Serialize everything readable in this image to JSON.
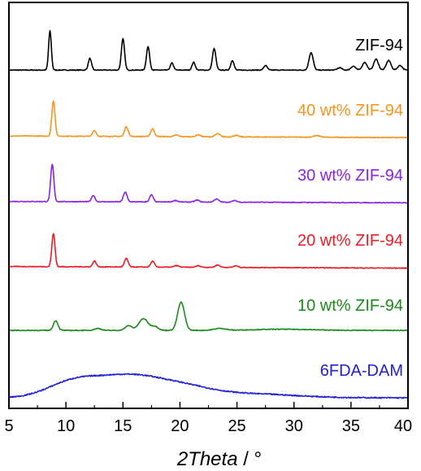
{
  "chart_data": {
    "type": "line",
    "title": "",
    "xlabel": "2Theta / °",
    "xlabel_main": "2Theta",
    "xlabel_unit": " / °",
    "ylabel": "",
    "xlim": [
      5,
      40
    ],
    "xticks": [
      5,
      10,
      15,
      20,
      25,
      30,
      35,
      40
    ],
    "xtick_labels": [
      "5",
      "10",
      "15",
      "20",
      "25",
      "30",
      "35",
      "40"
    ],
    "grid": false,
    "y_axis_shown": false,
    "legend": "inline labels at right of each trace",
    "series": [
      {
        "name": "ZIF-94",
        "color": "#000000",
        "offset": 5,
        "baseline": 0.08,
        "baseline_slope": 0,
        "peaks": [
          [
            8.6,
            1.0,
            0.12
          ],
          [
            12.1,
            0.3,
            0.14
          ],
          [
            15.0,
            0.8,
            0.14
          ],
          [
            17.2,
            0.6,
            0.14
          ],
          [
            19.3,
            0.18,
            0.14
          ],
          [
            21.2,
            0.2,
            0.14
          ],
          [
            23.0,
            0.55,
            0.15
          ],
          [
            24.6,
            0.25,
            0.14
          ],
          [
            27.5,
            0.12,
            0.15
          ],
          [
            31.5,
            0.45,
            0.18
          ],
          [
            34.0,
            0.06,
            0.2
          ],
          [
            35.2,
            0.1,
            0.2
          ],
          [
            36.2,
            0.2,
            0.2
          ],
          [
            37.2,
            0.28,
            0.2
          ],
          [
            38.3,
            0.25,
            0.2
          ],
          [
            39.3,
            0.12,
            0.2
          ]
        ],
        "noise": 0.01
      },
      {
        "name": "40 wt% ZIF-94",
        "color": "#f7941d",
        "offset": 4,
        "baseline": 0.06,
        "baseline_slope": -0.0012,
        "peaks": [
          [
            8.9,
            0.9,
            0.14
          ],
          [
            12.5,
            0.15,
            0.15
          ],
          [
            15.3,
            0.25,
            0.16
          ],
          [
            17.6,
            0.2,
            0.16
          ],
          [
            19.7,
            0.04,
            0.2
          ],
          [
            21.6,
            0.05,
            0.2
          ],
          [
            23.3,
            0.08,
            0.2
          ],
          [
            24.9,
            0.04,
            0.2
          ],
          [
            32.0,
            0.04,
            0.3
          ]
        ],
        "noise": 0.01
      },
      {
        "name": "30 wt% ZIF-94",
        "color": "#8b22e8",
        "offset": 3,
        "baseline": 0.05,
        "baseline_slope": -0.001,
        "peaks": [
          [
            8.8,
            0.95,
            0.14
          ],
          [
            12.4,
            0.16,
            0.15
          ],
          [
            15.2,
            0.25,
            0.16
          ],
          [
            17.5,
            0.18,
            0.16
          ],
          [
            19.6,
            0.04,
            0.2
          ],
          [
            21.5,
            0.05,
            0.2
          ],
          [
            23.2,
            0.08,
            0.2
          ],
          [
            24.8,
            0.04,
            0.2
          ]
        ],
        "noise": 0.01
      },
      {
        "name": "20 wt% ZIF-94",
        "color": "#ee1c25",
        "offset": 2,
        "baseline": 0.05,
        "baseline_slope": -0.0012,
        "peaks": [
          [
            8.9,
            0.85,
            0.14
          ],
          [
            12.5,
            0.15,
            0.15
          ],
          [
            15.3,
            0.22,
            0.16
          ],
          [
            17.6,
            0.15,
            0.16
          ],
          [
            19.7,
            0.04,
            0.2
          ],
          [
            21.6,
            0.04,
            0.2
          ],
          [
            23.3,
            0.06,
            0.2
          ],
          [
            24.9,
            0.04,
            0.2
          ]
        ],
        "noise": 0.01
      },
      {
        "name": "10 wt% ZIF-94",
        "color": "#1a8a1a",
        "offset": 1,
        "baseline": 0.08,
        "baseline_slope": 0,
        "peaks": [
          [
            9.1,
            0.25,
            0.2
          ],
          [
            12.8,
            0.05,
            0.3
          ],
          [
            15.5,
            0.12,
            0.3
          ],
          [
            16.8,
            0.3,
            0.4
          ],
          [
            17.8,
            0.1,
            0.3
          ],
          [
            20.1,
            0.72,
            0.3
          ],
          [
            23.5,
            0.05,
            0.5
          ],
          [
            29.0,
            0.03,
            2.5
          ]
        ],
        "noise": 0.01
      },
      {
        "name": "6FDA-DAM",
        "color": "#2020d8",
        "offset": 0,
        "baseline": 0.02,
        "baseline_slope": 0,
        "peaks": [
          [
            10.5,
            0.35,
            2.2
          ],
          [
            15.5,
            0.55,
            3.0
          ],
          [
            20.5,
            0.2,
            2.5
          ],
          [
            26.0,
            0.1,
            4.0
          ]
        ],
        "noise": 0.015
      }
    ]
  }
}
